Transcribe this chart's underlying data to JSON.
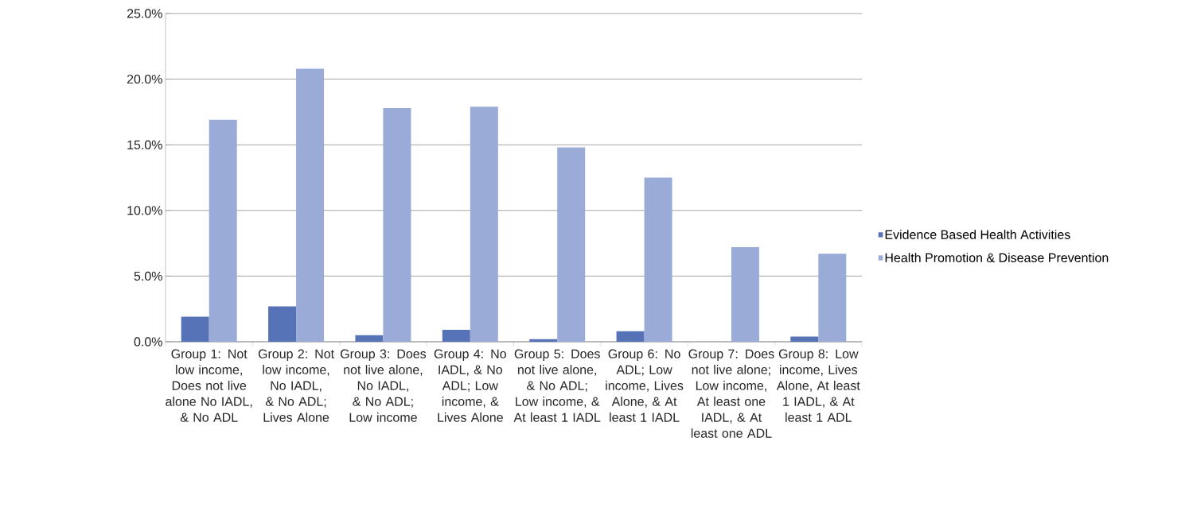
{
  "chart_data": {
    "type": "bar",
    "categories": [
      "Group 1: Not low income, Does not live alone No IADL, & No ADL",
      "Group 2: Not low income, No IADL, & No ADL; Lives Alone",
      "Group 3: Does not live alone, No IADL, & No ADL; Low income",
      "Group 4: No IADL, & No ADL; Low income, & Lives Alone",
      "Group 5: Does not live alone, & No ADL; Low income, & At least 1 IADL",
      "Group 6: No ADL; Low income, Lives Alone, & At least 1 IADL",
      "Group 7: Does not live alone; Low income, At least one IADL, & At least one ADL",
      "Group 8: Low income, Lives Alone, At least 1 IADL, & At least 1 ADL"
    ],
    "series": [
      {
        "name": "Evidence Based Health Activities",
        "color": "#5673b8",
        "values": [
          1.9,
          2.7,
          0.5,
          0.9,
          0.2,
          0.8,
          0,
          0.4
        ]
      },
      {
        "name": "Health Promotion & Disease Prevention",
        "color": "#9aabd8",
        "values": [
          16.9,
          20.8,
          17.8,
          17.9,
          14.8,
          12.5,
          7.2,
          6.7
        ]
      }
    ],
    "ylim": [
      0,
      25
    ],
    "yticks": [
      {
        "value": 0,
        "label": "0.0%"
      },
      {
        "value": 5,
        "label": "5.0%"
      },
      {
        "value": 10,
        "label": "10.0%"
      },
      {
        "value": 15,
        "label": "15.0%"
      },
      {
        "value": 20,
        "label": "20.0%"
      },
      {
        "value": 25,
        "label": "25.0%"
      }
    ],
    "grid": "y",
    "legend": "right"
  }
}
